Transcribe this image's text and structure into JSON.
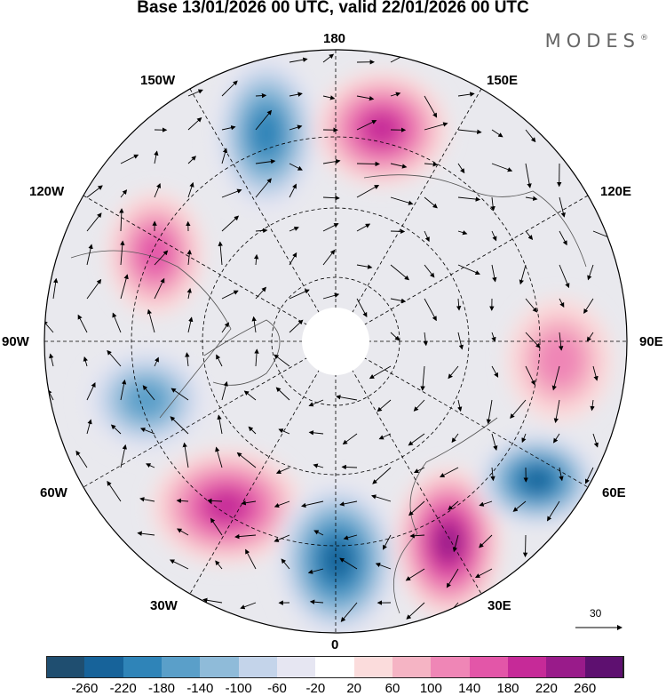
{
  "title": "Base 13/01/2026 00 UTC, valid 22/01/2026 00 UTC",
  "brand": "MODES",
  "brand_mark": "®",
  "lon_labels": {
    "n180": "180",
    "e150": "150E",
    "w150": "150W",
    "e120": "120E",
    "w120": "120W",
    "e90": "90E",
    "w90": "90W",
    "e60": "60E",
    "w60": "60W",
    "e30": "30E",
    "w30": "30W",
    "zero": "0"
  },
  "reference_vector": {
    "value": "30"
  },
  "colorbar": {
    "ticks": [
      "-260",
      "-220",
      "-180",
      "-140",
      "-100",
      "-60",
      "-20",
      "20",
      "60",
      "100",
      "140",
      "180",
      "220",
      "260"
    ],
    "colors": [
      "#1f4e70",
      "#17639a",
      "#2f84b8",
      "#5a9fc9",
      "#8fbbd9",
      "#c4d4ea",
      "#e6e6f2",
      "#ffffff",
      "#fbdcdc",
      "#f5b4c4",
      "#ef86b6",
      "#e356a8",
      "#c62a98",
      "#991b8a",
      "#5e1070"
    ]
  },
  "anomalies": [
    {
      "name": "siberia-n-pacific-low",
      "value": -200
    },
    {
      "name": "bering-high",
      "value": 180
    },
    {
      "name": "alaska-high",
      "value": 150
    },
    {
      "name": "hudson-low",
      "value": -150
    },
    {
      "name": "n-atlantic-high",
      "value": 200
    },
    {
      "name": "greenwich-low",
      "value": -240
    },
    {
      "name": "europe-high",
      "value": 230
    },
    {
      "name": "ural-low",
      "value": -220
    },
    {
      "name": "central-asia-high",
      "value": 110
    }
  ]
}
